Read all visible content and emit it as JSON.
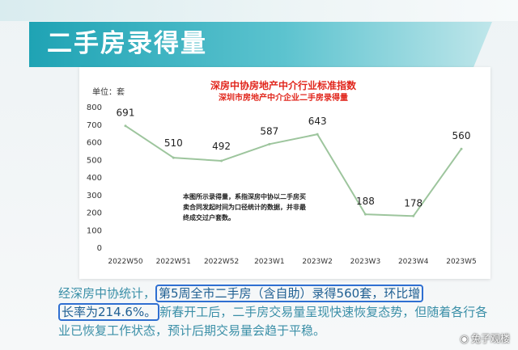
{
  "heading": "二手房录得量",
  "chart_data": {
    "type": "line",
    "title": "深房中协房地产中介行业标准指数",
    "subtitle": "深圳市房地产中介企业二手房录得量",
    "unit_label": "单位：套",
    "categories": [
      "2022W50",
      "2022W51",
      "2022W52",
      "2023W1",
      "2023W2",
      "2023W3",
      "2023W4",
      "2023W5"
    ],
    "values": [
      691,
      510,
      492,
      587,
      643,
      188,
      178,
      560
    ],
    "data_labels": [
      "691",
      "510",
      "492",
      "587",
      "643",
      "188",
      "178",
      "560"
    ],
    "yticks": [
      "0",
      "100",
      "200",
      "300",
      "400",
      "500",
      "600",
      "700",
      "800"
    ],
    "ylim": [
      0,
      800
    ],
    "line_color": "#9dc59d",
    "grid": false
  },
  "note": "本图所示录得量，系指深房中协以二手房买卖合同发起时间为口径统计的数据，并非最终成交过户套数。",
  "paragraph": {
    "intro": "经深房中协统计，",
    "highlight_1": "第5周全市二手房（含自助）录得560套，环比增",
    "highlight_2": "长率为214.6%。",
    "rest": "新春开工后，二手房交易量呈现快速恢复态势，但随着各行各业已恢复工作状态，预计后期交易量会趋于平稳。"
  },
  "watermark": "兔子观楼",
  "colors": {
    "accent": "#1fa3b4",
    "title_red": "#e1261c",
    "text_blue": "#3a8fa7",
    "highlight_border": "#2f6fd1"
  }
}
